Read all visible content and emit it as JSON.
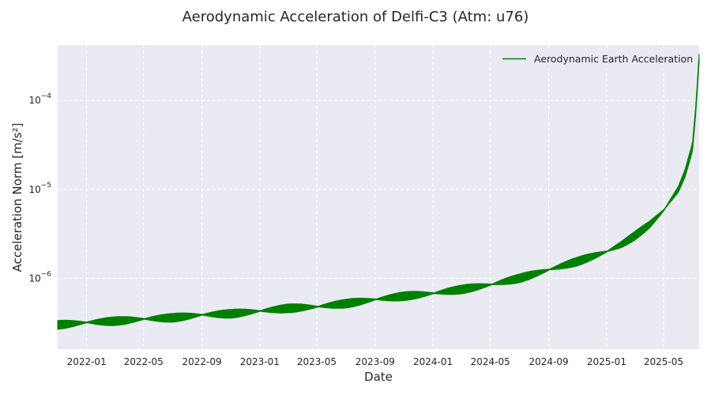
{
  "chart_data": {
    "type": "line",
    "title": "Aerodynamic Acceleration of Delfi-C3 (Atm: u76)",
    "xlabel": "Date",
    "ylabel": "Acceleration Norm [m/s²]",
    "yscale": "log",
    "xlim": [
      "2021-11-01",
      "2025-07-15"
    ],
    "ylim": [
      1.6e-07,
      0.00042
    ],
    "grid": true,
    "legend_position": "top-right",
    "x_ticks": [
      "2022-01",
      "2022-05",
      "2022-09",
      "2023-01",
      "2023-05",
      "2023-09",
      "2024-01",
      "2024-05",
      "2024-09",
      "2025-01",
      "2025-05"
    ],
    "y_ticks": [
      {
        "value": 1e-06,
        "base": "10",
        "exp": "−6"
      },
      {
        "value": 1e-05,
        "base": "10",
        "exp": "−5"
      },
      {
        "value": 0.0001,
        "base": "10",
        "exp": "−4"
      }
    ],
    "series": [
      {
        "name": "Aerodynamic Earth Acceleration",
        "color": "#008000",
        "x": [
          "2021-11-01",
          "2022-01-01",
          "2022-03-01",
          "2022-05-01",
          "2022-07-01",
          "2022-09-01",
          "2022-11-01",
          "2023-01-01",
          "2023-03-01",
          "2023-05-01",
          "2023-07-01",
          "2023-09-01",
          "2023-11-01",
          "2024-01-01",
          "2024-03-01",
          "2024-05-01",
          "2024-07-01",
          "2024-09-01",
          "2024-11-01",
          "2025-01-01",
          "2025-02-01",
          "2025-03-01",
          "2025-04-01",
          "2025-05-01",
          "2025-06-01",
          "2025-06-15",
          "2025-07-01",
          "2025-07-08",
          "2025-07-15"
        ],
        "y": [
          3e-07,
          3.2e-07,
          3.3e-07,
          3.5e-07,
          3.6e-07,
          3.9e-07,
          4e-07,
          4.3e-07,
          4.6e-07,
          4.8e-07,
          5.2e-07,
          5.8e-07,
          6.3e-07,
          6.8e-07,
          7.5e-07,
          8.5e-07,
          1e-06,
          1.25e-06,
          1.55e-06,
          2e-06,
          2.4e-06,
          3e-06,
          4e-06,
          5.8e-06,
          1e-05,
          1.5e-05,
          3e-05,
          8e-05,
          0.0003
        ],
        "oscillation_band": "y varies by roughly ±10% about these values with a period of about 4 months"
      }
    ]
  }
}
